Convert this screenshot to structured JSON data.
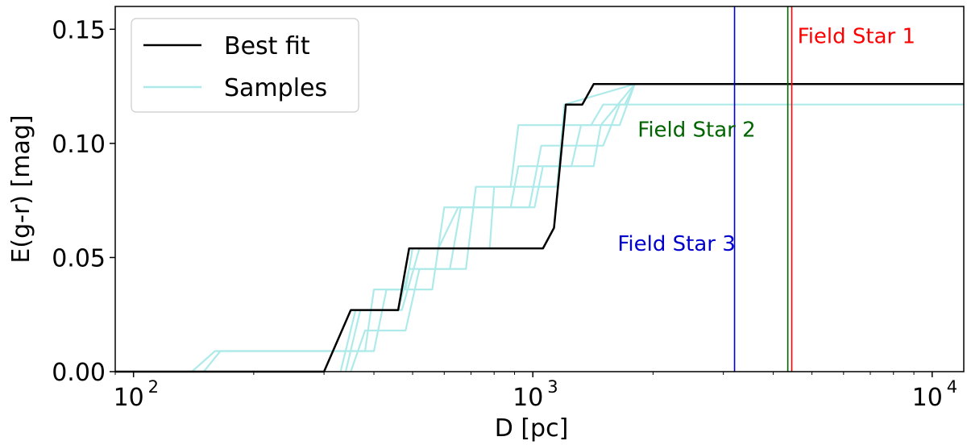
{
  "chart_data": {
    "type": "line",
    "xscale": "log",
    "xlim": [
      90,
      12000
    ],
    "ylim": [
      0.0,
      0.16
    ],
    "xlabel": "D [pc]",
    "ylabel": "E(g-r) [mag]",
    "xticks": [
      {
        "base": "10",
        "exp": "2",
        "value": 100
      },
      {
        "base": "10",
        "exp": "3",
        "value": 1000
      },
      {
        "base": "10",
        "exp": "4",
        "value": 10000
      }
    ],
    "yticks": [
      {
        "label": "0.00",
        "value": 0.0
      },
      {
        "label": "0.05",
        "value": 0.05
      },
      {
        "label": "0.10",
        "value": 0.1
      },
      {
        "label": "0.15",
        "value": 0.15
      }
    ],
    "legend": {
      "position": "upper-left",
      "entries": [
        {
          "label": "Best fit",
          "color": "#000000"
        },
        {
          "label": "Samples",
          "color": "#aeeaea"
        }
      ]
    },
    "vlines": [
      {
        "name": "field-star-3",
        "label": "Field Star 3",
        "x": 3200,
        "color": "#0000cc",
        "label_x": 1630,
        "label_y": 0.053
      },
      {
        "name": "field-star-2",
        "label": "Field Star 2",
        "x": 4350,
        "color": "#006400",
        "label_x": 1830,
        "label_y": 0.103
      },
      {
        "name": "field-star-1",
        "label": "Field Star 1",
        "x": 4450,
        "color": "#ff0000",
        "label_x": 4600,
        "label_y": 0.144
      }
    ],
    "series": [
      {
        "name": "Best fit",
        "color": "#000000",
        "x": [
          90,
          300,
          350,
          460,
          490,
          1060,
          1130,
          1210,
          1330,
          1420,
          12000
        ],
        "y": [
          0.0,
          0.0,
          0.027,
          0.027,
          0.054,
          0.054,
          0.063,
          0.117,
          0.117,
          0.126,
          0.126
        ]
      },
      {
        "name": "Sample 1",
        "color": "#aeeaea",
        "x": [
          140,
          160,
          380,
          400,
          480,
          500,
          780,
          800,
          1150,
          1200,
          1800
        ],
        "y": [
          0.0,
          0.009,
          0.009,
          0.036,
          0.036,
          0.054,
          0.054,
          0.081,
          0.081,
          0.117,
          0.126
        ]
      },
      {
        "name": "Sample 2",
        "color": "#aeeaea",
        "x": [
          150,
          165,
          400,
          430,
          560,
          600,
          880,
          920,
          1420,
          1480,
          1800
        ],
        "y": [
          0.0,
          0.009,
          0.009,
          0.036,
          0.036,
          0.072,
          0.072,
          0.09,
          0.09,
          0.108,
          0.126
        ]
      },
      {
        "name": "Sample 3",
        "color": "#aeeaea",
        "x": [
          330,
          360,
          460,
          490,
          680,
          720,
          880,
          920,
          1400,
          1500,
          1700,
          1800
        ],
        "y": [
          0.0,
          0.027,
          0.027,
          0.045,
          0.045,
          0.081,
          0.081,
          0.108,
          0.108,
          0.117,
          0.117,
          0.126
        ]
      },
      {
        "name": "Sample 4",
        "color": "#aeeaea",
        "x": [
          340,
          370,
          470,
          520,
          580,
          650,
          980,
          1050,
          1500,
          1650,
          12000
        ],
        "y": [
          0.0,
          0.027,
          0.027,
          0.054,
          0.054,
          0.072,
          0.072,
          0.099,
          0.099,
          0.117,
          0.117
        ]
      },
      {
        "name": "Sample 5",
        "color": "#aeeaea",
        "x": [
          350,
          380,
          480,
          520,
          620,
          660,
          1010,
          1060,
          1250,
          1320,
          1650,
          1800
        ],
        "y": [
          0.0,
          0.018,
          0.018,
          0.045,
          0.045,
          0.072,
          0.072,
          0.09,
          0.09,
          0.108,
          0.108,
          0.126
        ]
      }
    ]
  }
}
